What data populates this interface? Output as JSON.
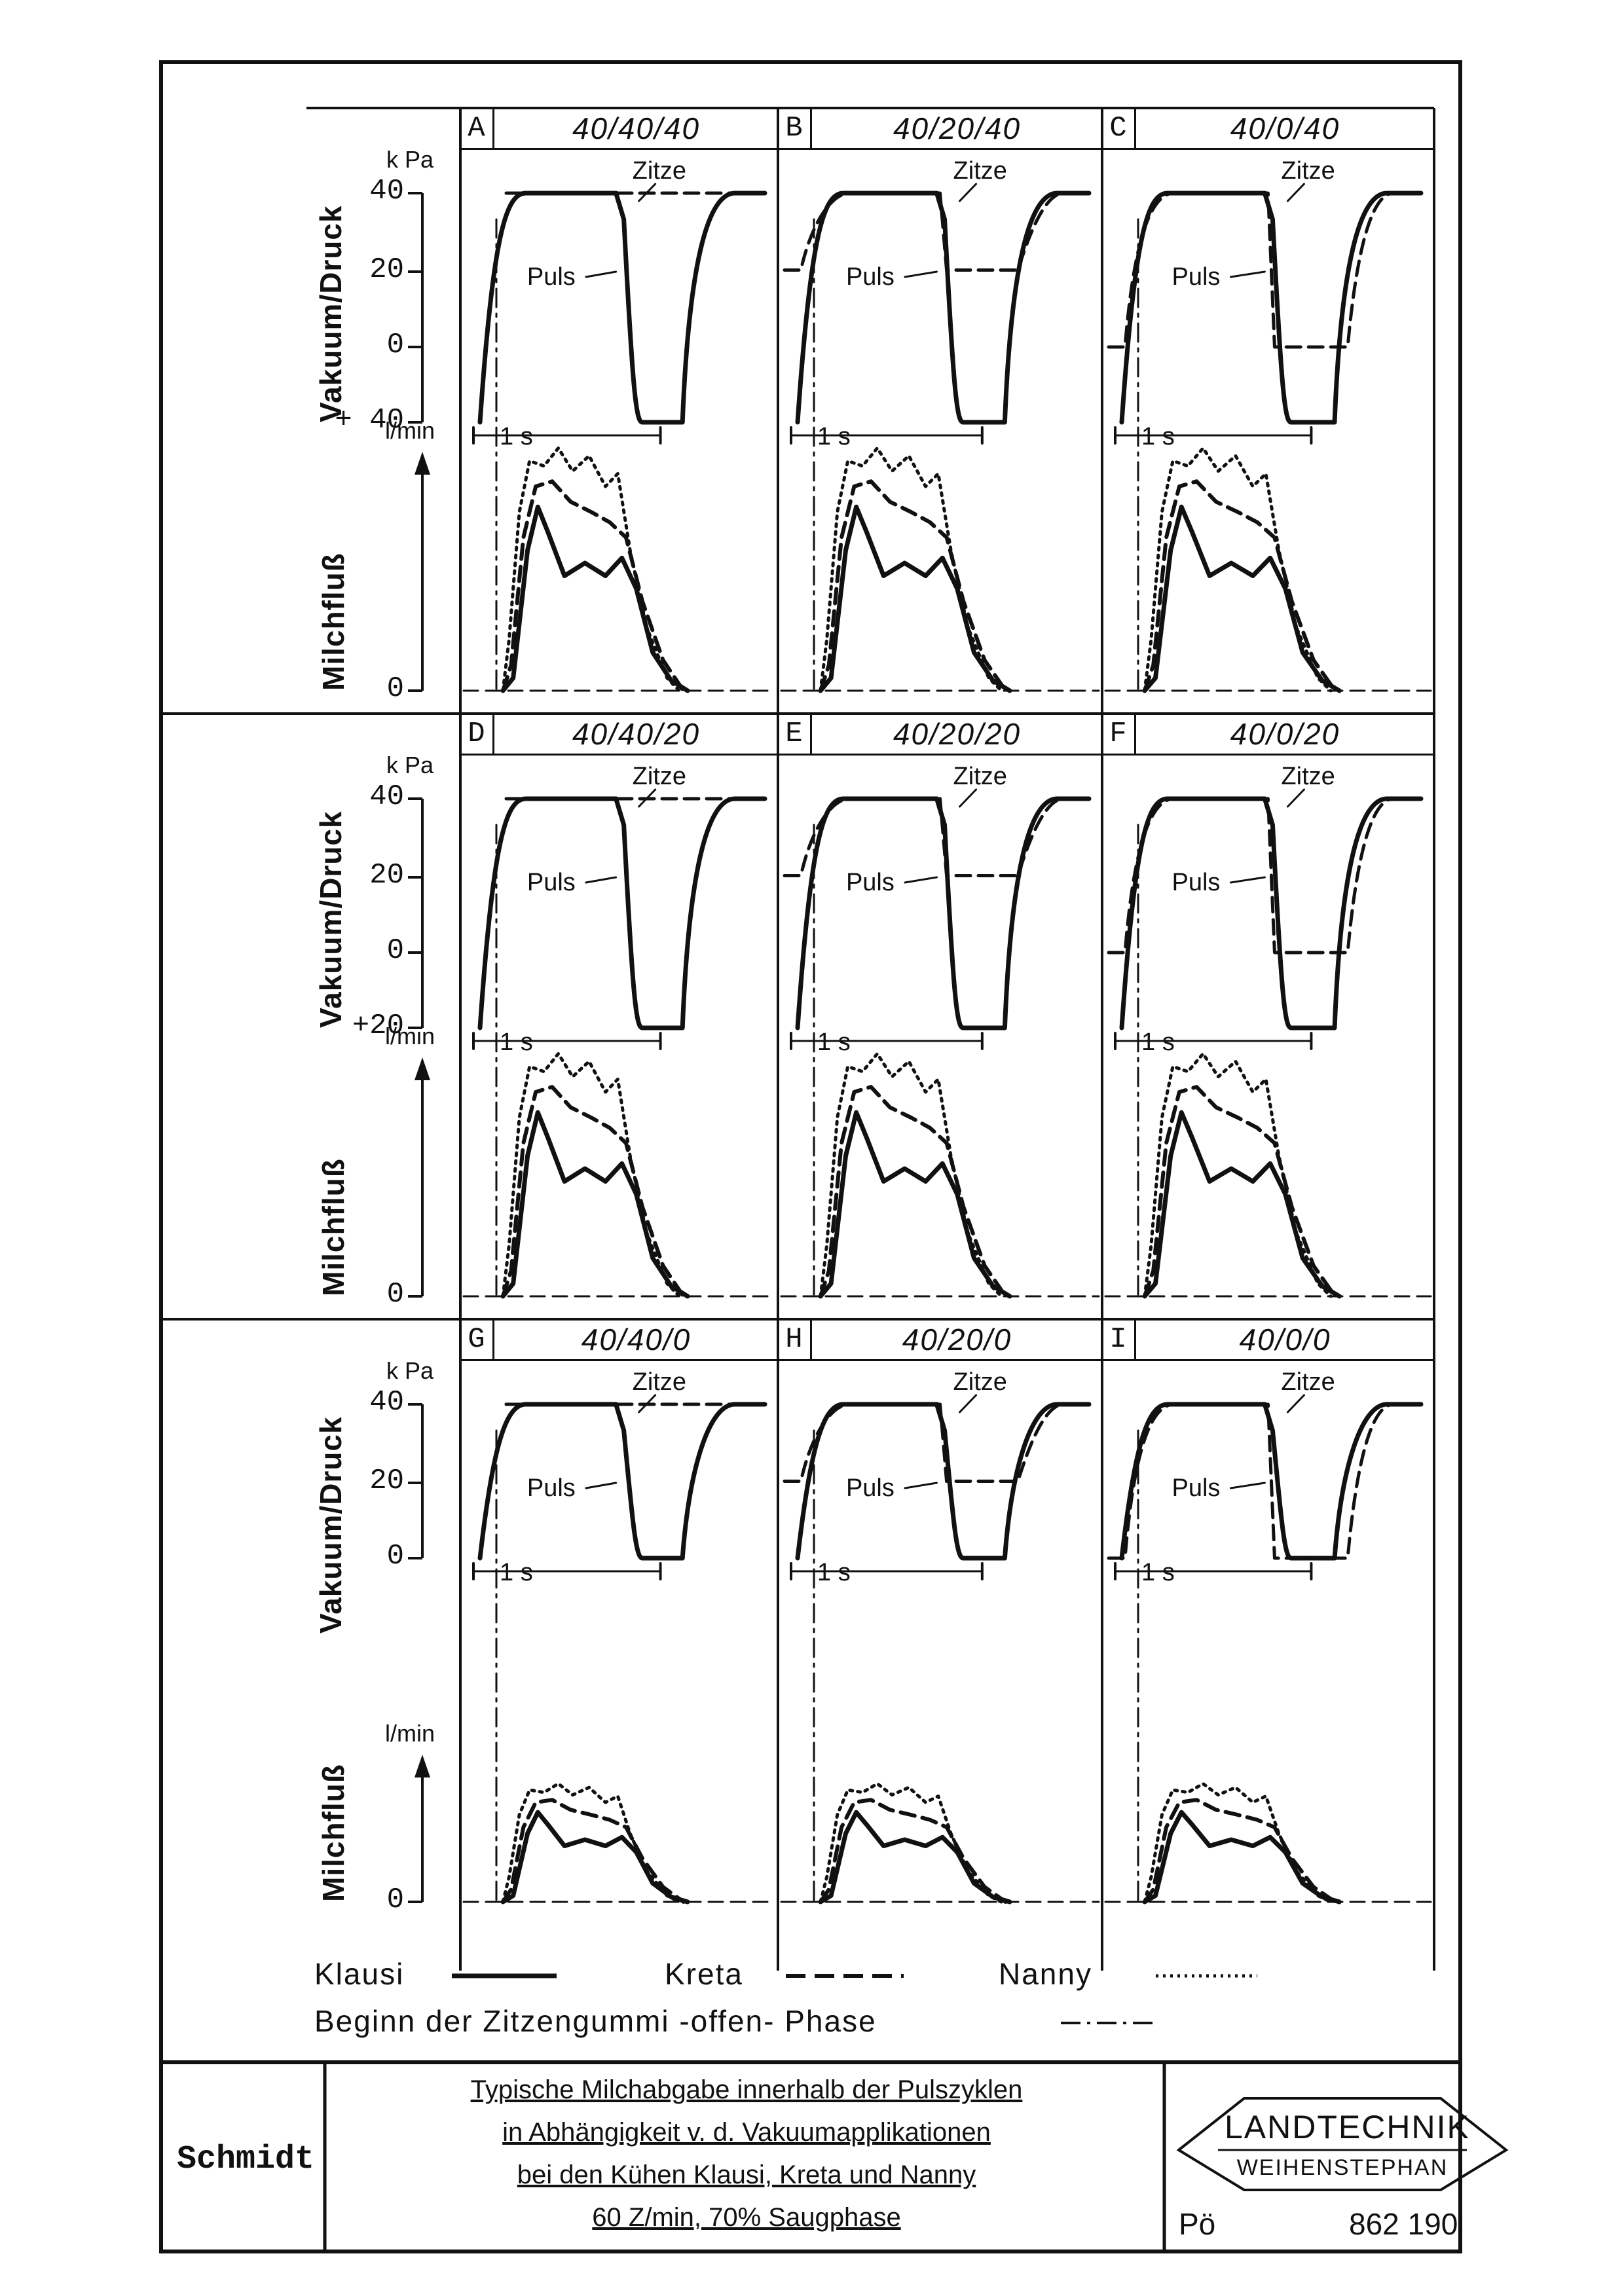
{
  "chart_data": {
    "type": "line",
    "title_block": {
      "author": "Schmidt",
      "caption_lines": [
        "Typische Milchabgabe innerhalb der Pulszyklen",
        "in Abhängigkeit v. d. Vakuumapplikationen",
        "bei den Kühen Klausi, Kreta und Nanny",
        "60 Z/min, 70% Saugphase"
      ],
      "logo_text_top": "LANDTECHNIK",
      "logo_text_bottom": "WEIHENSTEPHAN",
      "initials": "Pö",
      "number": "862 190"
    },
    "axis_labels": {
      "vacuum": "Vakuum/Druck",
      "flow": "Milchfluß",
      "kpa_unit": "k Pa",
      "flow_unit": "l/min",
      "time_scale": "1 s",
      "pulse_label": "Puls",
      "teat_label": "Zitze"
    },
    "legend": {
      "klausi": "Klausi",
      "kreta": "Kreta",
      "nanny": "Nanny",
      "phase": "Beginn der Zitzengummi -offen- Phase"
    },
    "rows": [
      {
        "vacuum_ticks": [
          "40",
          "20",
          "0",
          "+ 40"
        ],
        "flow_ticks": [
          "0"
        ]
      },
      {
        "vacuum_ticks": [
          "40",
          "20",
          "0",
          "+20"
        ],
        "flow_ticks": [
          "0"
        ]
      },
      {
        "vacuum_ticks": [
          "40",
          "20",
          "0"
        ],
        "flow_ticks": [
          "0"
        ]
      }
    ],
    "panels": [
      {
        "letter": "A",
        "code": "40/40/40",
        "teat_vacuum_kpa": 40
      },
      {
        "letter": "B",
        "code": "40/20/40",
        "teat_vacuum_kpa": 20
      },
      {
        "letter": "C",
        "code": "40/0/40",
        "teat_vacuum_kpa": 0
      },
      {
        "letter": "D",
        "code": "40/40/20",
        "teat_vacuum_kpa": 40
      },
      {
        "letter": "E",
        "code": "40/20/20",
        "teat_vacuum_kpa": 20
      },
      {
        "letter": "F",
        "code": "40/0/20",
        "teat_vacuum_kpa": 0
      },
      {
        "letter": "G",
        "code": "40/40/0",
        "teat_vacuum_kpa": 40
      },
      {
        "letter": "H",
        "code": "40/20/0",
        "teat_vacuum_kpa": 20
      },
      {
        "letter": "I",
        "code": "40/0/0",
        "teat_vacuum_kpa": 0
      }
    ]
  }
}
